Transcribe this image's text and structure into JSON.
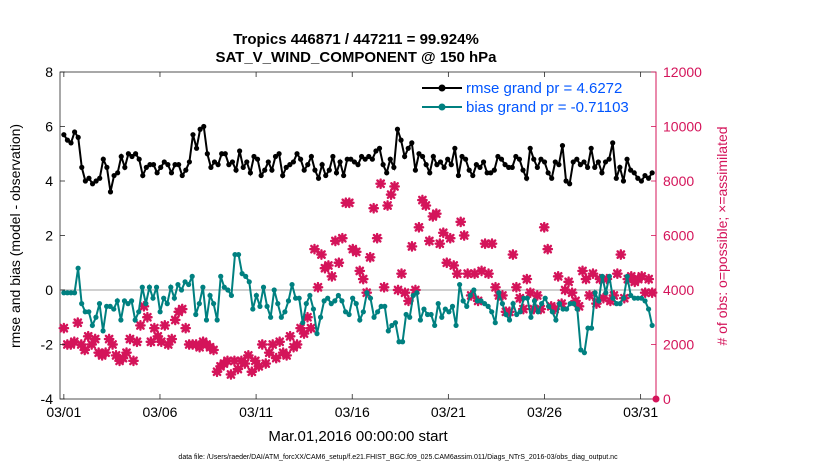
{
  "chart_data": {
    "type": "line",
    "title": "Tropics 446871 / 447211 = 99.924%",
    "subtitle": "SAT_V_WIND_COMPONENT @ 150 hPa",
    "xlabel": "Mar.01,2016 00:00:00 start",
    "ylabel_left": "rmse and bias (model - observation)",
    "ylabel_right": "# of obs: o=possible; ×=assimilated",
    "footer": "data file: /Users/raeder/DAI/ATM_forcXX/CAM6_setup/f.e21.FHIST_BGC.f09_025.CAM6assim.011/Diags_NTrS_2016-03/obs_diag_output.nc",
    "xlim": [
      0.8,
      31.8
    ],
    "ylim_left": [
      -4,
      8
    ],
    "ylim_right": [
      0,
      12000
    ],
    "x_ticks": [
      1,
      6,
      11,
      16,
      21,
      26,
      31
    ],
    "x_tick_labels": [
      "03/01",
      "03/06",
      "03/11",
      "03/16",
      "03/21",
      "03/26",
      "03/31"
    ],
    "y_ticks_left": [
      -4,
      -2,
      0,
      2,
      4,
      6,
      8
    ],
    "y_ticks_right": [
      0,
      2000,
      4000,
      6000,
      8000,
      10000,
      12000
    ],
    "legend": [
      {
        "label": "rmse grand pr = 4.6272",
        "color": "#000000"
      },
      {
        "label": "bias grand pr = -0.71103",
        "color": "#008080"
      }
    ],
    "legend_position": "top-right",
    "colors": {
      "rmse": "#000000",
      "bias": "#008080",
      "obs": "#d4145a",
      "zero_line": "#c0c0c0",
      "label_text": "#0055ff"
    },
    "series": [
      {
        "name": "rmse",
        "axis": "left",
        "values": [
          5.7,
          5.5,
          5.4,
          5.8,
          5.6,
          4.5,
          4.0,
          4.1,
          3.9,
          4.0,
          4.1,
          4.8,
          4.5,
          3.6,
          4.2,
          4.3,
          4.9,
          4.5,
          5.0,
          4.9,
          5.0,
          4.8,
          4.2,
          4.5,
          4.6,
          4.6,
          4.3,
          4.5,
          4.7,
          4.6,
          4.3,
          4.6,
          4.6,
          4.2,
          4.4,
          4.7,
          5.7,
          5.2,
          5.9,
          6.0,
          5.0,
          4.5,
          4.7,
          4.6,
          5.0,
          5.0,
          4.6,
          4.7,
          4.4,
          5.1,
          4.5,
          4.7,
          4.3,
          4.9,
          4.8,
          4.2,
          4.4,
          4.7,
          4.4,
          4.9,
          5.0,
          4.2,
          4.5,
          4.6,
          4.7,
          5.0,
          4.8,
          4.4,
          4.6,
          4.9,
          4.4,
          4.1,
          4.6,
          4.2,
          4.4,
          4.9,
          4.3,
          4.7,
          4.2,
          4.8,
          4.8,
          4.7,
          4.6,
          4.9,
          4.8,
          4.9,
          4.8,
          5.1,
          5.2,
          4.6,
          4.3,
          4.8,
          4.5,
          5.9,
          5.5,
          4.9,
          5.2,
          5.4,
          4.4,
          5.0,
          4.9,
          4.6,
          4.3,
          4.9,
          4.6,
          4.7,
          4.5,
          4.8,
          4.6,
          5.2,
          4.2,
          4.9,
          4.8,
          4.4,
          4.2,
          4.6,
          4.5,
          4.7,
          4.3,
          4.3,
          4.4,
          4.9,
          4.8,
          4.6,
          4.5,
          4.5,
          4.9,
          4.8,
          4.4,
          4.1,
          5.2,
          4.8,
          4.5,
          4.8,
          4.7,
          4.3,
          4.1,
          4.7,
          4.6,
          5.3,
          4.0,
          3.9,
          4.7,
          4.8,
          4.6,
          4.7,
          4.5,
          5.2,
          4.5,
          4.7,
          4.3,
          4.7,
          4.8,
          5.4,
          4.1,
          4.5,
          4.0,
          4.8,
          4.4,
          4.3,
          4.1,
          4.0,
          4.2,
          4.1,
          4.3
        ]
      },
      {
        "name": "bias",
        "axis": "left",
        "values": [
          -0.1,
          -0.1,
          -0.1,
          -0.1,
          0.8,
          -0.5,
          -0.8,
          -0.8,
          -1.3,
          -1.0,
          -0.5,
          -1.5,
          -0.6,
          -0.6,
          -0.7,
          -0.4,
          -1.1,
          -0.4,
          -0.5,
          -0.4,
          -1.1,
          -0.8,
          0.1,
          -0.5,
          0.1,
          -0.3,
          0.1,
          -0.8,
          -0.3,
          -0.5,
          0.1,
          -0.3,
          0.2,
          0.0,
          0.3,
          0.2,
          0.5,
          -0.9,
          -0.5,
          0.1,
          -1.1,
          -0.2,
          -0.5,
          -1.1,
          0.5,
          0.1,
          0.0,
          -0.2,
          1.3,
          1.3,
          0.6,
          0.5,
          0.3,
          -0.7,
          -0.2,
          -0.6,
          0.1,
          -0.6,
          -1.0,
          0.0,
          -0.5,
          -1.0,
          -0.8,
          -0.4,
          0.2,
          -0.3,
          -0.3,
          -1.2,
          -0.5,
          -0.2,
          -0.7,
          -1.6,
          -1.0,
          -0.4,
          -0.3,
          -0.5,
          -0.4,
          -0.2,
          -0.4,
          -0.8,
          -0.9,
          -0.3,
          -0.5,
          -1.1,
          -0.8,
          -0.1,
          -0.3,
          -1.0,
          -0.8,
          -0.6,
          -0.6,
          -1.5,
          -1.3,
          -1.2,
          -1.9,
          -1.9,
          -0.9,
          -1.0,
          -0.2,
          -0.1,
          -1.1,
          -0.7,
          -0.9,
          -0.9,
          -1.3,
          -0.5,
          -1.0,
          -0.7,
          -0.8,
          -0.6,
          -1.3,
          0.2,
          -0.4,
          -0.6,
          -0.2,
          0.0,
          -0.4,
          -0.4,
          -0.5,
          -0.6,
          -0.8,
          -1.2,
          -0.1,
          -0.5,
          -0.9,
          -1.1,
          -0.5,
          -0.9,
          -0.8,
          -0.3,
          -0.3,
          -1.0,
          -0.4,
          -0.8,
          -0.5,
          -0.3,
          -0.6,
          -0.8,
          -1.1,
          -0.5,
          -0.7,
          -0.7,
          -0.5,
          -0.5,
          -0.7,
          -2.2,
          -2.3,
          -1.4,
          -1.4,
          -0.1,
          -0.4,
          0.5,
          -0.1,
          0.5,
          -0.3,
          -0.5,
          -0.5,
          -0.3,
          0.5,
          -0.2,
          -0.3,
          -0.3,
          -0.3,
          -0.4,
          -0.7,
          -1.3
        ]
      },
      {
        "name": "obs assimilated",
        "axis": "right",
        "values": [
          2600,
          2000,
          2000,
          2100,
          2800,
          2000,
          1800,
          2300,
          2000,
          2200,
          1700,
          1600,
          1700,
          2200,
          2000,
          1600,
          1400,
          1500,
          1700,
          2200,
          1400,
          2100,
          2700,
          3400,
          3000,
          2100,
          2600,
          2300,
          2100,
          2700,
          2000,
          2200,
          2900,
          3200,
          3300,
          2600,
          2000,
          2000,
          2000,
          1900,
          2100,
          2000,
          1900,
          1800,
          1000,
          1200,
          1300,
          1400,
          900,
          1400,
          1100,
          1400,
          1300,
          1600,
          1000,
          1400,
          1200,
          2000,
          1300,
          1700,
          2000,
          1500,
          2100,
          1700,
          1600,
          2300,
          1900,
          2000,
          2600,
          2400,
          3000,
          2600,
          5500,
          4100,
          5300,
          4800,
          4900,
          4500,
          5800,
          5000,
          5900,
          7200,
          7200,
          5500,
          5400,
          4700,
          4400,
          3900,
          5200,
          7000,
          5900,
          7900,
          4100,
          7100,
          7500,
          7800,
          4000,
          4600,
          3900,
          3600,
          5600,
          4000,
          6300,
          7300,
          7100,
          5800,
          6700,
          6800,
          5700,
          6100,
          5000,
          5900,
          4900,
          4600,
          6500,
          6000,
          4600,
          3800,
          4600,
          3600,
          4700,
          5700,
          4600,
          5700,
          4100,
          3800,
          3800,
          3200,
          3200,
          5300,
          4100,
          3700,
          3300,
          4400,
          3900,
          3300,
          3800,
          3300,
          6300,
          5500,
          3400,
          3300,
          4500,
          3500,
          4000,
          4300,
          3900,
          3600,
          3400,
          4700,
          4400,
          3800,
          4600,
          3500,
          4400,
          3700,
          4400,
          3600,
          3800,
          4600,
          5300,
          3700,
          4400,
          4500,
          4300,
          4400,
          4500,
          3900,
          4400,
          3900
        ]
      }
    ]
  }
}
